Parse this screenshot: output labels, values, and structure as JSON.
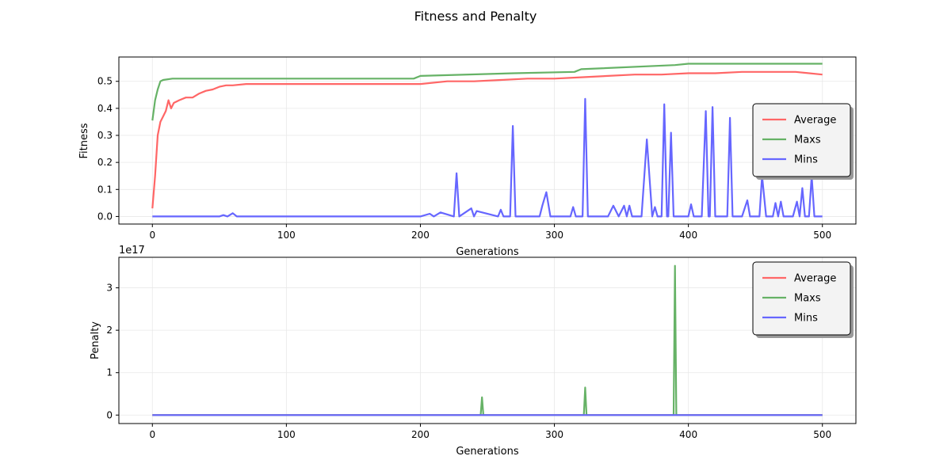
{
  "figure": {
    "title": "Fitness and Penalty"
  },
  "chart_data": [
    {
      "type": "line",
      "ylabel": "Fitness",
      "xlabel": "Generations",
      "xlim": [
        -25,
        525
      ],
      "ylim": [
        -0.028,
        0.59
      ],
      "xticks": [
        0,
        100,
        200,
        300,
        400,
        500
      ],
      "yticks": [
        0.0,
        0.1,
        0.2,
        0.3,
        0.4,
        0.5
      ],
      "ytick_labels": [
        "0.0",
        "0.1",
        "0.2",
        "0.3",
        "0.4",
        "0.5"
      ],
      "grid": true,
      "legend": "center-right",
      "colors": {
        "Average": "#ff6666",
        "Maxs": "#66b266",
        "Mins": "#6666ff"
      },
      "series": [
        {
          "name": "Average",
          "x": [
            0,
            2,
            4,
            6,
            8,
            10,
            12,
            14,
            16,
            20,
            25,
            30,
            35,
            40,
            45,
            50,
            55,
            60,
            70,
            80,
            90,
            100,
            120,
            140,
            160,
            180,
            200,
            220,
            240,
            260,
            280,
            300,
            320,
            340,
            360,
            380,
            400,
            420,
            440,
            460,
            480,
            500
          ],
          "y": [
            0.03,
            0.15,
            0.3,
            0.35,
            0.37,
            0.39,
            0.43,
            0.4,
            0.42,
            0.43,
            0.44,
            0.44,
            0.455,
            0.465,
            0.47,
            0.48,
            0.485,
            0.485,
            0.49,
            0.49,
            0.49,
            0.49,
            0.49,
            0.49,
            0.49,
            0.49,
            0.49,
            0.5,
            0.5,
            0.505,
            0.51,
            0.51,
            0.515,
            0.52,
            0.525,
            0.525,
            0.53,
            0.53,
            0.535,
            0.535,
            0.535,
            0.525
          ]
        },
        {
          "name": "Maxs",
          "x": [
            0,
            2,
            4,
            6,
            8,
            15,
            195,
            200,
            270,
            315,
            320,
            390,
            400,
            410,
            500
          ],
          "y": [
            0.355,
            0.43,
            0.47,
            0.5,
            0.505,
            0.51,
            0.51,
            0.52,
            0.53,
            0.535,
            0.545,
            0.56,
            0.565,
            0.565,
            0.565
          ]
        },
        {
          "name": "Mins",
          "x": [
            0,
            50,
            53,
            56,
            60,
            63,
            100,
            200,
            207,
            210,
            215,
            225,
            227,
            229,
            238,
            240,
            242,
            258,
            260,
            262,
            267,
            269,
            271,
            289,
            291,
            294,
            297,
            300,
            312,
            314,
            316,
            321,
            323,
            325,
            340,
            344,
            348,
            352,
            354,
            356,
            358,
            365,
            369,
            373,
            375,
            377,
            380,
            382,
            384,
            385,
            387,
            389,
            395,
            400,
            402,
            404,
            410,
            413,
            415,
            416,
            418,
            420,
            425,
            429,
            431,
            433,
            440,
            444,
            446,
            450,
            453,
            455,
            458,
            463,
            465,
            467,
            469,
            471,
            478,
            481,
            483,
            485,
            487,
            490,
            492,
            494,
            496,
            500
          ],
          "y": [
            0.0,
            0.0,
            0.005,
            0.0,
            0.012,
            0.0,
            0.0,
            0.0,
            0.01,
            0.0,
            0.015,
            0.0,
            0.16,
            0.0,
            0.03,
            0.0,
            0.02,
            0.0,
            0.025,
            0.0,
            0.0,
            0.335,
            0.0,
            0.0,
            0.04,
            0.09,
            0.0,
            0.0,
            0.0,
            0.035,
            0.0,
            0.0,
            0.435,
            0.0,
            0.0,
            0.04,
            0.0,
            0.04,
            0.0,
            0.04,
            0.0,
            0.0,
            0.285,
            0.0,
            0.035,
            0.0,
            0.0,
            0.415,
            0.0,
            0.0,
            0.31,
            0.0,
            0.0,
            0.0,
            0.045,
            0.0,
            0.0,
            0.39,
            0.0,
            0.0,
            0.405,
            0.0,
            0.0,
            0.0,
            0.365,
            0.0,
            0.0,
            0.06,
            0.0,
            0.0,
            0.0,
            0.15,
            0.0,
            0.0,
            0.05,
            0.0,
            0.055,
            0.0,
            0.0,
            0.055,
            0.0,
            0.105,
            0.0,
            0.0,
            0.15,
            0.0,
            0.0,
            0.0
          ]
        }
      ]
    },
    {
      "type": "line",
      "ylabel": "Penalty",
      "xlabel": "Generations",
      "xlim": [
        -25,
        525
      ],
      "ylim": [
        -2e+16,
        3.72e+17
      ],
      "xticks": [
        0,
        100,
        200,
        300,
        400,
        500
      ],
      "yticks": [
        0,
        1e+17,
        2e+17,
        3e+17
      ],
      "ytick_labels": [
        "0",
        "1",
        "2",
        "3"
      ],
      "y_offset_label": "1e17",
      "grid": true,
      "legend": "top-right",
      "colors": {
        "Average": "#ff6666",
        "Maxs": "#66b266",
        "Mins": "#6666ff"
      },
      "series": [
        {
          "name": "Average",
          "x": [
            0,
            500
          ],
          "y": [
            0,
            0
          ]
        },
        {
          "name": "Maxs",
          "x": [
            0,
            245,
            246,
            247,
            322,
            323,
            324,
            389,
            390,
            391,
            500
          ],
          "y": [
            0,
            0,
            4.2e+16,
            0,
            0,
            6.5e+16,
            0,
            0,
            3.52e+17,
            0,
            0
          ]
        },
        {
          "name": "Mins",
          "x": [
            0,
            500
          ],
          "y": [
            0,
            0
          ]
        }
      ]
    }
  ]
}
